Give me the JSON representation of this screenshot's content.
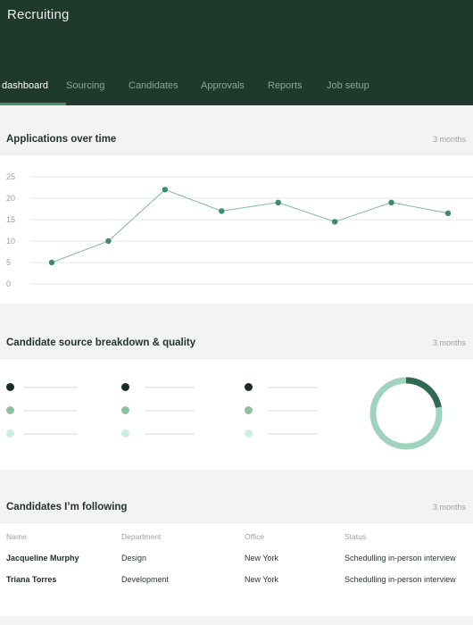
{
  "app": {
    "title": "Recruiting"
  },
  "nav": {
    "items": [
      {
        "label": "dashboard",
        "active": true
      },
      {
        "label": "Sourcing",
        "active": false
      },
      {
        "label": "Candidates",
        "active": false
      },
      {
        "label": "Approvals",
        "active": false
      },
      {
        "label": "Reports",
        "active": false
      },
      {
        "label": "Job setup",
        "active": false
      }
    ]
  },
  "applications_panel": {
    "title": "Applications over time",
    "range": "3 months"
  },
  "source_panel": {
    "title": "Candidate source breakdown & quality",
    "range": "3 months"
  },
  "following_panel": {
    "title": "Candidates I’m following",
    "range": "3 months",
    "columns": [
      "Name",
      "Department",
      "Office",
      "Status"
    ],
    "rows": [
      {
        "name": "Jacqueline Murphy",
        "department": "Design",
        "office": "New York",
        "status": "Schedulling in-person interview"
      },
      {
        "name": "Triana Torres",
        "department": "Development",
        "office": "New York",
        "status": "Schedulling in-person interview"
      }
    ]
  },
  "colors": {
    "header_bg": "#1f3a2d",
    "accent": "#4b8f6f",
    "series_dark": "#1e2b26",
    "series_mid": "#8fbfa8",
    "series_light": "#cdeee0"
  },
  "legend_dots": [
    {
      "color": "#1e2b26"
    },
    {
      "color": "#8fbfa8"
    },
    {
      "color": "#cdeee0"
    }
  ],
  "donut": {
    "dark_fraction": 0.22,
    "dark_color": "#2e6b50",
    "light_color": "#9fd3bd"
  },
  "chart_data": {
    "type": "line",
    "title": "",
    "xlabel": "",
    "ylabel": "",
    "yticks": [
      0,
      5,
      10,
      15,
      20,
      25
    ],
    "ylim": [
      0,
      25
    ],
    "x": [
      1,
      2,
      3,
      4,
      5,
      6,
      7,
      8
    ],
    "series": [
      {
        "values": [
          5,
          10,
          22,
          17,
          19,
          14.5,
          19,
          16.5
        ],
        "color": "#3f8a69"
      }
    ],
    "grid": true
  }
}
